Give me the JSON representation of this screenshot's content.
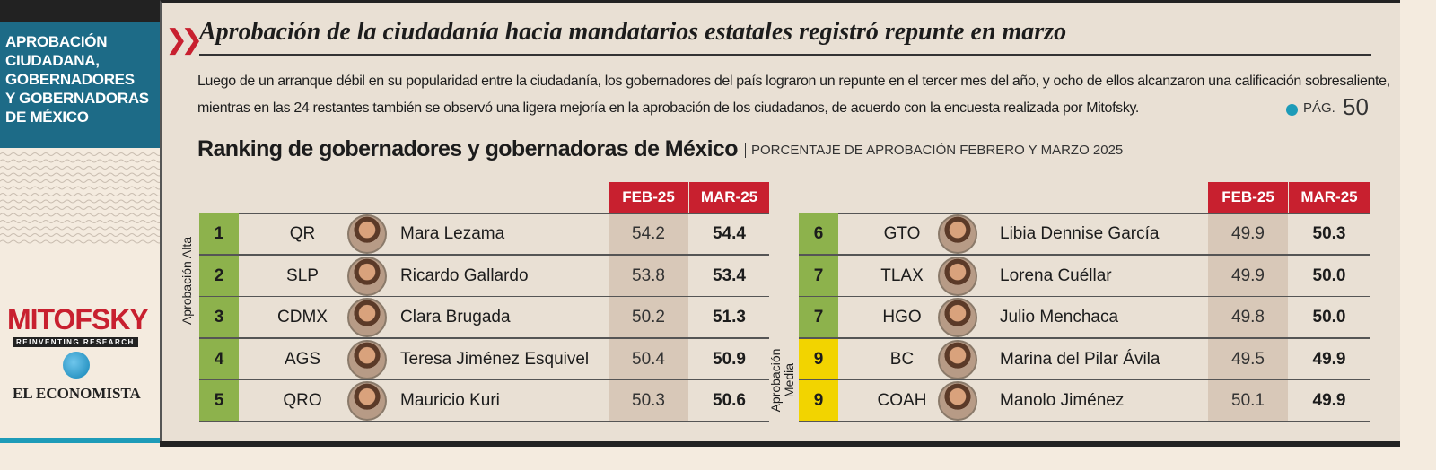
{
  "sidebar": {
    "title_lines": [
      "APROBACIÓN",
      "CIUDADANA,",
      "GOBERNADORES",
      "Y GOBERNADORAS",
      "DE MÉXICO"
    ],
    "brand": "MITOFSKY",
    "brand_tagline": "REINVENTING RESEARCH",
    "publisher": "EL ECONOMISTA"
  },
  "header": {
    "title": "Aprobación de la ciudadanía hacia mandatarios estatales registró repunte en marzo",
    "body_lines": [
      "Luego de un arranque débil en su popularidad entre la ciudadanía, los gobernadores del país lograron un repunte en el tercer mes del año, y ocho de ellos alcanzaron una calificación sobresaliente,",
      "mientras en las 24 restantes también se observó una ligera mejoría en la aprobación de los ciudadanos, de acuerdo con la encuesta realizada por Mitofsky."
    ],
    "page_label": "PÁG.",
    "page_number": "50"
  },
  "table": {
    "title": "Ranking de gobernadores y gobernadoras de México",
    "subtitle": "PORCENTAJE DE APROBACIÓN FEBRERO Y MARZO 2025",
    "panels": [
      {
        "columns": [
          "FEB-25",
          "MAR-25"
        ],
        "group_label": "Aprobación Alta",
        "rows": [
          {
            "rank": "1",
            "color": "#8db24c",
            "state": "QR",
            "name": "Mara Lezama",
            "feb": "54.2",
            "mar": "54.4"
          },
          {
            "rank": "2",
            "color": "#8db24c",
            "state": "SLP",
            "name": "Ricardo Gallardo",
            "feb": "53.8",
            "mar": "53.4"
          },
          {
            "rank": "3",
            "color": "#8db24c",
            "state": "CDMX",
            "name": "Clara Brugada",
            "feb": "50.2",
            "mar": "51.3"
          },
          {
            "rank": "4",
            "color": "#8db24c",
            "state": "AGS",
            "name": "Teresa Jiménez Esquivel",
            "feb": "50.4",
            "mar": "50.9"
          },
          {
            "rank": "5",
            "color": "#8db24c",
            "state": "QRO",
            "name": "Mauricio Kuri",
            "feb": "50.3",
            "mar": "50.6"
          }
        ]
      },
      {
        "columns": [
          "FEB-25",
          "MAR-25"
        ],
        "group_label_lines": [
          "Aprobación",
          "Media"
        ],
        "rows": [
          {
            "rank": "6",
            "color": "#8db24c",
            "state": "GTO",
            "name": "Libia Dennise García",
            "feb": "49.9",
            "mar": "50.3"
          },
          {
            "rank": "7",
            "color": "#8db24c",
            "state": "TLAX",
            "name": "Lorena Cuéllar",
            "feb": "49.9",
            "mar": "50.0"
          },
          {
            "rank": "7",
            "color": "#8db24c",
            "state": "HGO",
            "name": "Julio Menchaca",
            "feb": "49.8",
            "mar": "50.0"
          },
          {
            "rank": "9",
            "color": "#f2d400",
            "state": "BC",
            "name": "Marina del Pilar Ávila",
            "feb": "49.5",
            "mar": "49.9"
          },
          {
            "rank": "9",
            "color": "#f2d400",
            "state": "COAH",
            "name": "Manolo Jiménez",
            "feb": "50.1",
            "mar": "49.9"
          }
        ]
      }
    ]
  }
}
